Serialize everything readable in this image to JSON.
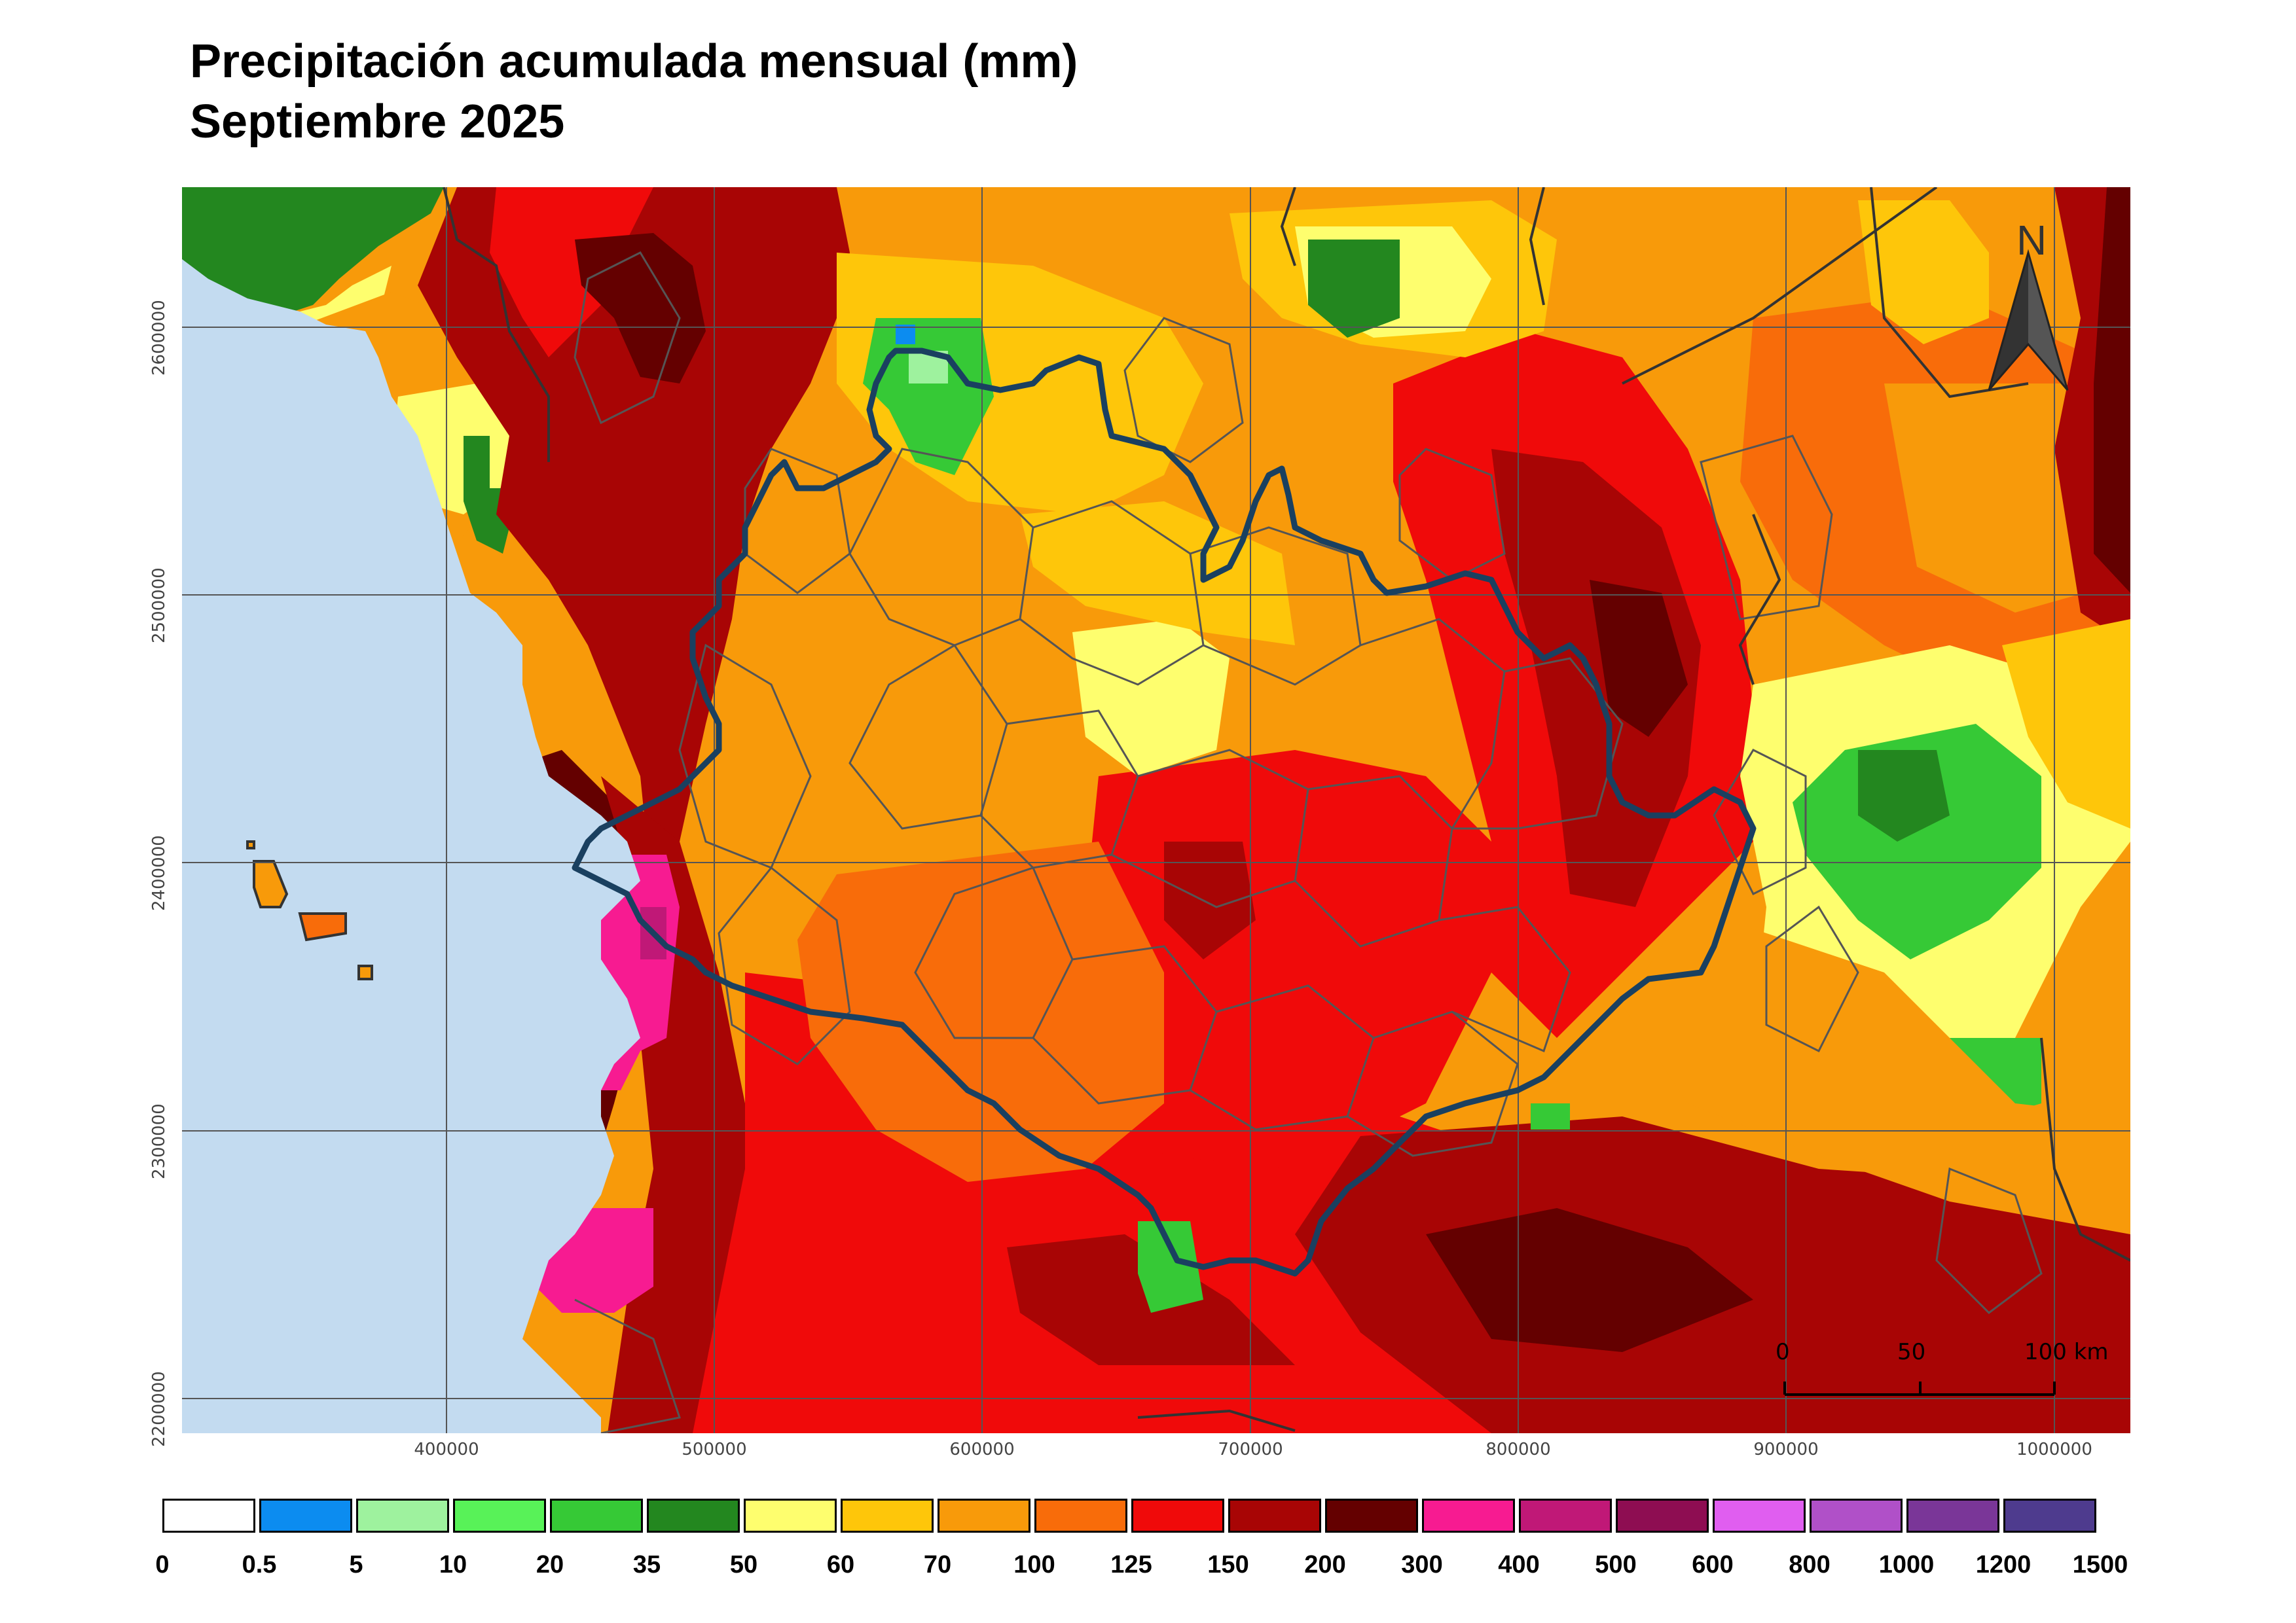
{
  "title": {
    "line1": "Precipitación acumulada mensual (mm)",
    "line2": "Septiembre 2025"
  },
  "north_arrow": {
    "label": "N",
    "icon": "north-arrow-icon"
  },
  "scale_bar": {
    "labels": [
      "0",
      "50",
      "100 km"
    ]
  },
  "axes": {
    "x_ticks": [
      "400000",
      "500000",
      "600000",
      "700000",
      "800000",
      "900000",
      "1000000"
    ],
    "y_ticks": [
      "2600000",
      "2500000",
      "2400000",
      "2300000",
      "2200000"
    ]
  },
  "legend": {
    "colors": [
      "#ffffff",
      "#0c8cf0",
      "#9ef29e",
      "#58f258",
      "#36c936",
      "#23871f",
      "#fefe6e",
      "#fec60a",
      "#f89a0a",
      "#f86c0a",
      "#f00a0a",
      "#a80505",
      "#640000",
      "#f71b91",
      "#c01877",
      "#8e0d52",
      "#e05ef0",
      "#b050c8",
      "#7a3698",
      "#4e3b8e"
    ],
    "labels": [
      "0",
      "0.5",
      "5",
      "10",
      "20",
      "35",
      "50",
      "60",
      "70",
      "100",
      "125",
      "150",
      "200",
      "300",
      "400",
      "500",
      "600",
      "800",
      "1000",
      "1200",
      "1500"
    ]
  },
  "colors": {
    "sea": "#c3dbf0",
    "boundary_main": "#1a4060",
    "boundary_minor": "#555555",
    "grid": "#555555"
  }
}
